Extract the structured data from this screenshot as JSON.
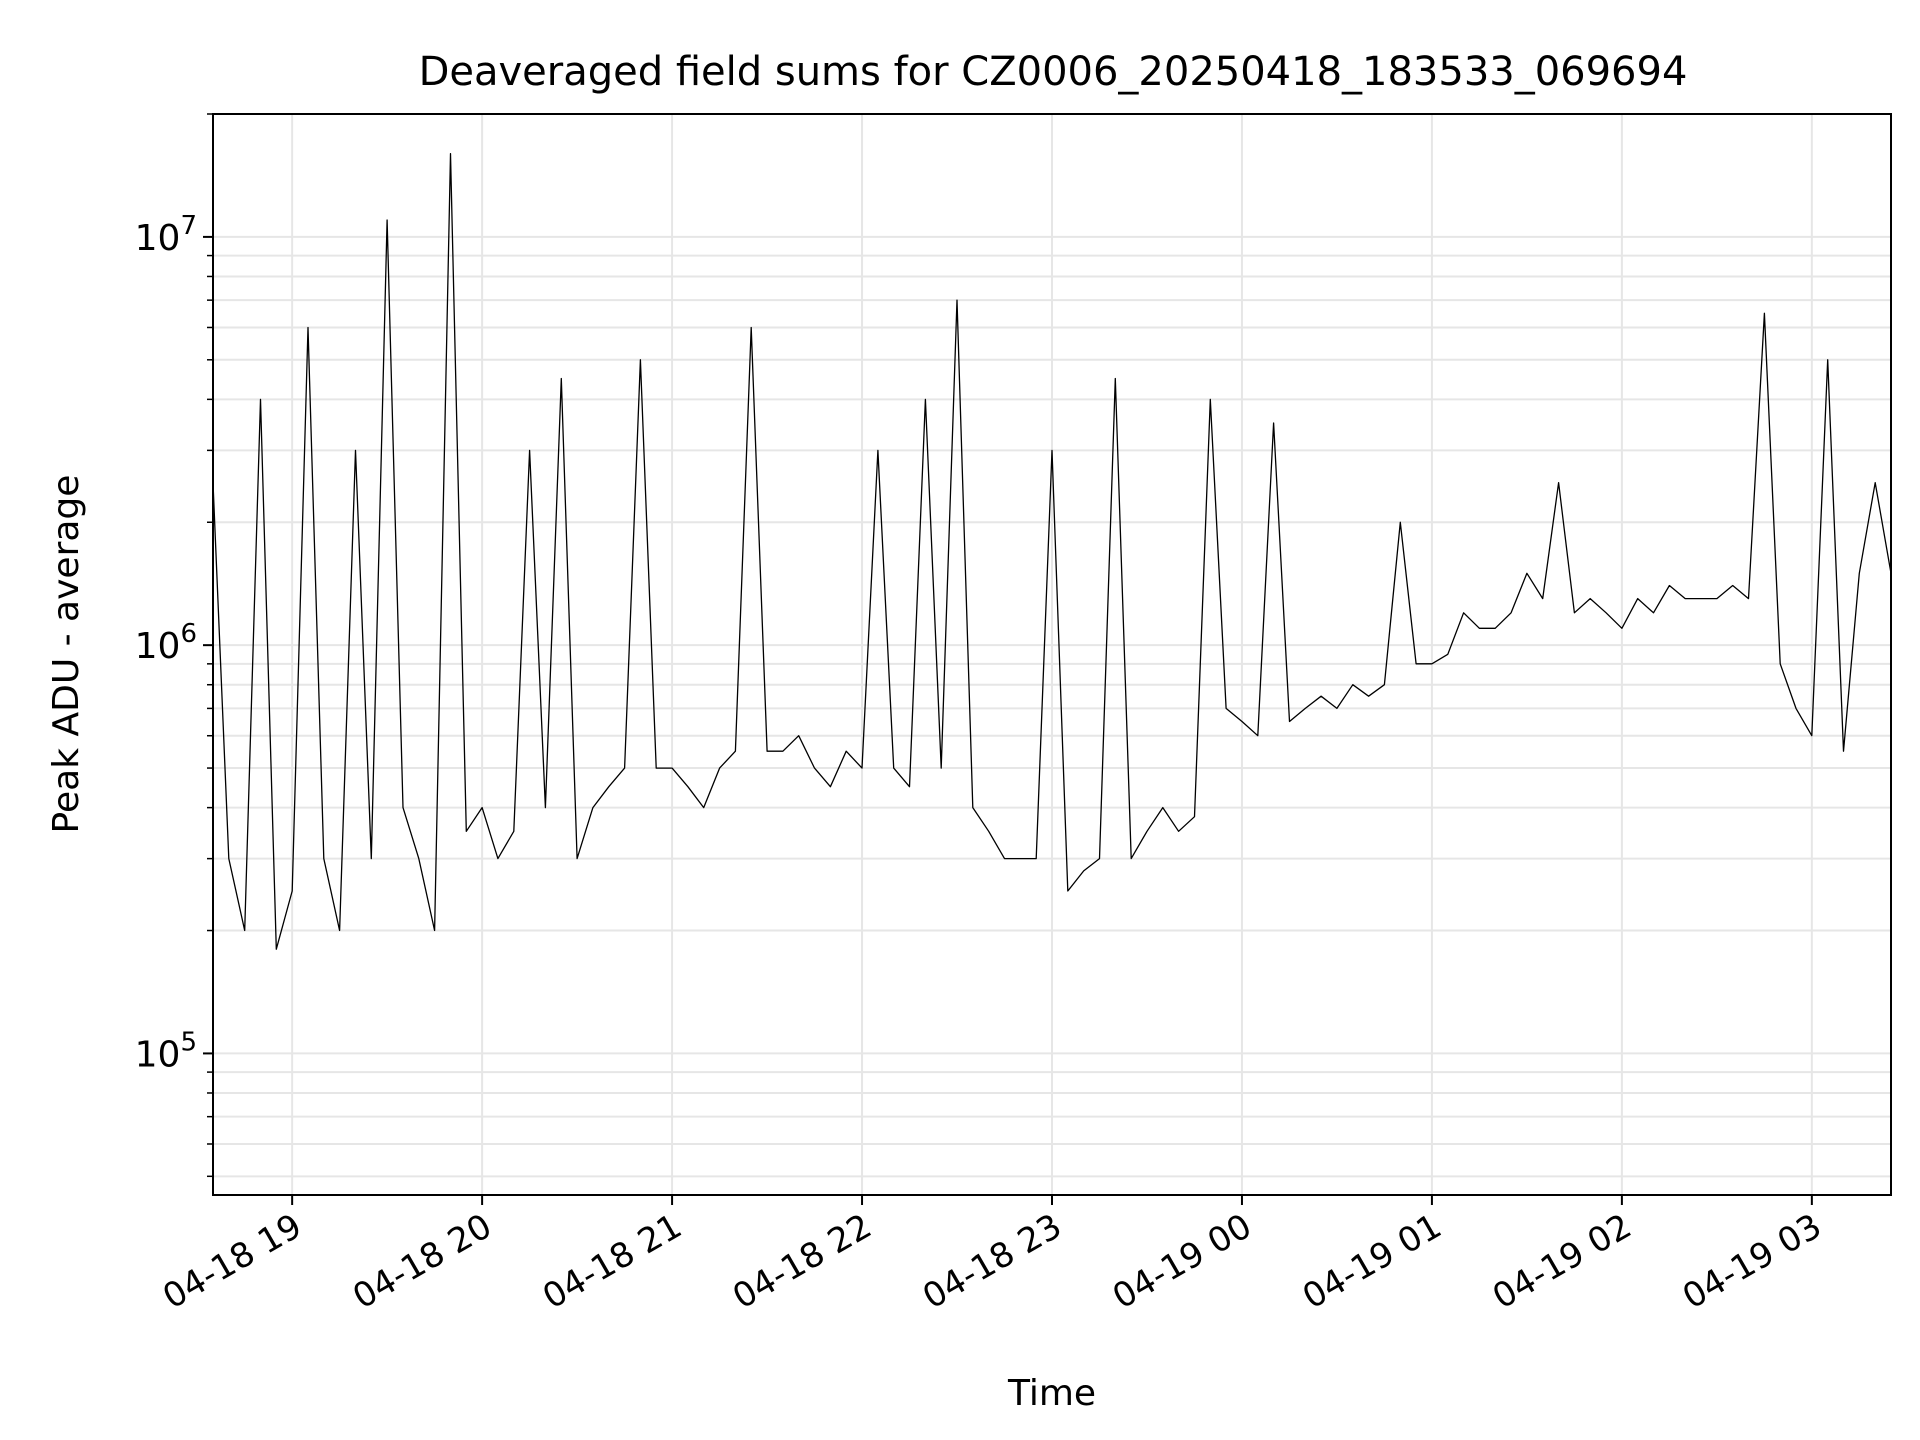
{
  "chart_data": {
    "type": "line",
    "title": "Deaveraged field sums for CZ0006_20250418_183533_069694",
    "xlabel": "Time",
    "ylabel": "Peak ADU - average",
    "y_scale": "log",
    "ylim": [
      45000,
      20000000
    ],
    "xlim": [
      "04-18 18:35",
      "04-19 03:25"
    ],
    "grid": true,
    "legend": "none",
    "line_color": "#000000",
    "x_ticks": [
      "04-18 19",
      "04-18 20",
      "04-18 21",
      "04-18 22",
      "04-18 23",
      "04-19 00",
      "04-19 01",
      "04-19 02",
      "04-19 03"
    ],
    "y_ticks": [
      {
        "base": "10",
        "exp": "5",
        "value": 100000
      },
      {
        "base": "10",
        "exp": "6",
        "value": 1000000
      },
      {
        "base": "10",
        "exp": "7",
        "value": 10000000
      }
    ],
    "series": [
      {
        "x": [
          "04-18 18:35",
          "04-18 18:40",
          "04-18 18:45",
          "04-18 18:50",
          "04-18 18:55",
          "04-18 19:00",
          "04-18 19:05",
          "04-18 19:10",
          "04-18 19:15",
          "04-18 19:20",
          "04-18 19:25",
          "04-18 19:30",
          "04-18 19:35",
          "04-18 19:40",
          "04-18 19:45",
          "04-18 19:50",
          "04-18 19:55",
          "04-18 20:00",
          "04-18 20:05",
          "04-18 20:10",
          "04-18 20:15",
          "04-18 20:20",
          "04-18 20:25",
          "04-18 20:30",
          "04-18 20:35",
          "04-18 20:40",
          "04-18 20:45",
          "04-18 20:50",
          "04-18 20:55",
          "04-18 21:00",
          "04-18 21:05",
          "04-18 21:10",
          "04-18 21:15",
          "04-18 21:20",
          "04-18 21:25",
          "04-18 21:30",
          "04-18 21:35",
          "04-18 21:40",
          "04-18 21:45",
          "04-18 21:50",
          "04-18 21:55",
          "04-18 22:00",
          "04-18 22:05",
          "04-18 22:10",
          "04-18 22:15",
          "04-18 22:20",
          "04-18 22:25",
          "04-18 22:30",
          "04-18 22:35",
          "04-18 22:40",
          "04-18 22:45",
          "04-18 22:50",
          "04-18 22:55",
          "04-18 23:00",
          "04-18 23:05",
          "04-18 23:10",
          "04-18 23:15",
          "04-18 23:20",
          "04-18 23:25",
          "04-18 23:30",
          "04-18 23:35",
          "04-18 23:40",
          "04-18 23:45",
          "04-18 23:50",
          "04-18 23:55",
          "04-19 00:00",
          "04-19 00:05",
          "04-19 00:10",
          "04-19 00:15",
          "04-19 00:20",
          "04-19 00:25",
          "04-19 00:30",
          "04-19 00:35",
          "04-19 00:40",
          "04-19 00:45",
          "04-19 00:50",
          "04-19 00:55",
          "04-19 01:00",
          "04-19 01:05",
          "04-19 01:10",
          "04-19 01:15",
          "04-19 01:20",
          "04-19 01:25",
          "04-19 01:30",
          "04-19 01:35",
          "04-19 01:40",
          "04-19 01:45",
          "04-19 01:50",
          "04-19 01:55",
          "04-19 02:00",
          "04-19 02:05",
          "04-19 02:10",
          "04-19 02:15",
          "04-19 02:20",
          "04-19 02:25",
          "04-19 02:30",
          "04-19 02:35",
          "04-19 02:40",
          "04-19 02:45",
          "04-19 02:50",
          "04-19 02:55",
          "04-19 03:00",
          "04-19 03:05",
          "04-19 03:10",
          "04-19 03:15",
          "04-19 03:20",
          "04-19 03:25"
        ],
        "y": [
          2500000,
          300000,
          200000,
          4000000,
          180000,
          250000,
          6000000,
          300000,
          200000,
          3000000,
          300000,
          11000000,
          400000,
          300000,
          200000,
          16000000,
          350000,
          400000,
          300000,
          350000,
          3000000,
          400000,
          4500000,
          300000,
          400000,
          450000,
          500000,
          5000000,
          500000,
          500000,
          450000,
          400000,
          500000,
          550000,
          6000000,
          550000,
          550000,
          600000,
          500000,
          450000,
          550000,
          500000,
          3000000,
          500000,
          450000,
          4000000,
          500000,
          7000000,
          400000,
          350000,
          300000,
          300000,
          300000,
          3000000,
          250000,
          280000,
          300000,
          4500000,
          300000,
          350000,
          400000,
          350000,
          380000,
          4000000,
          700000,
          650000,
          600000,
          3500000,
          650000,
          700000,
          750000,
          700000,
          800000,
          750000,
          800000,
          2000000,
          900000,
          900000,
          950000,
          1200000,
          1100000,
          1100000,
          1200000,
          1500000,
          1300000,
          2500000,
          1200000,
          1300000,
          1200000,
          1100000,
          1300000,
          1200000,
          1400000,
          1300000,
          1300000,
          1300000,
          1400000,
          1300000,
          6500000,
          900000,
          700000,
          600000,
          5000000,
          550000,
          1500000,
          2500000,
          1500000
        ]
      }
    ]
  }
}
